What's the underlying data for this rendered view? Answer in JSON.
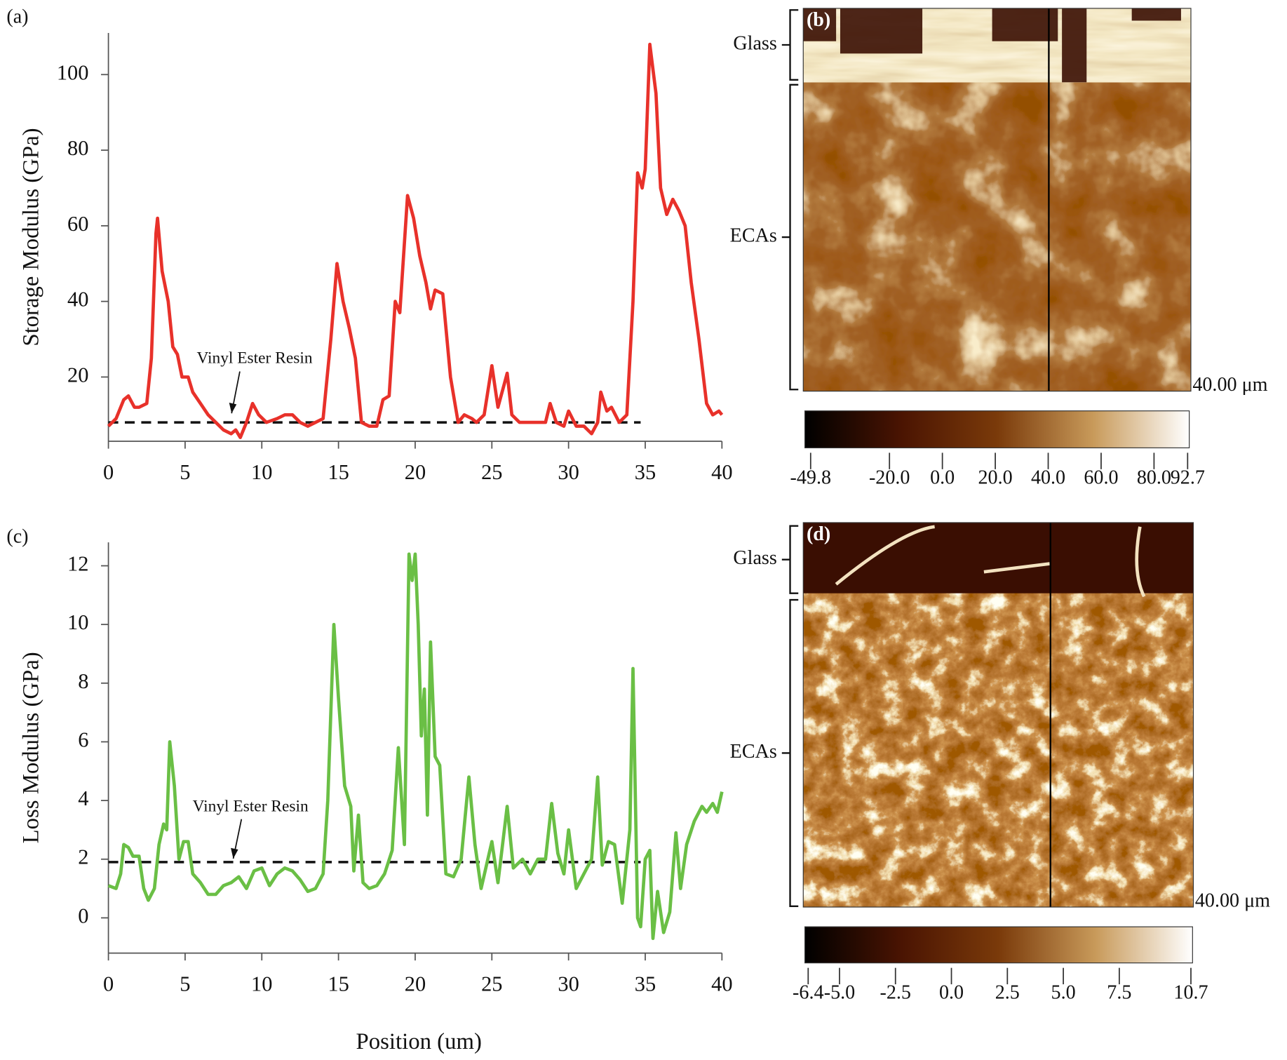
{
  "chart_data": [
    {
      "type": "line",
      "panel": "(a)",
      "ylabel": "Storage Modulus (GPa)",
      "color": "#e8312a",
      "x": [
        0,
        0.5,
        1,
        1.3,
        1.7,
        2,
        2.5,
        2.8,
        3.1,
        3.2,
        3.5,
        3.9,
        4.2,
        4.5,
        4.8,
        5.2,
        5.5,
        6,
        6.5,
        7,
        7.5,
        8,
        8.3,
        8.6,
        9,
        9.4,
        9.8,
        10.3,
        11,
        11.5,
        12,
        12.5,
        13,
        13.5,
        14,
        14.5,
        14.9,
        15.3,
        15.7,
        16.1,
        16.5,
        17,
        17.5,
        17.9,
        18.3,
        18.7,
        19,
        19.5,
        19.9,
        20.3,
        20.7,
        21,
        21.3,
        21.8,
        22.3,
        22.8,
        23.2,
        23.7,
        24,
        24.5,
        25,
        25.4,
        25.8,
        26,
        26.3,
        26.8,
        27.5,
        28,
        28.5,
        28.8,
        29.2,
        29.7,
        30,
        30.5,
        31,
        31.5,
        31.9,
        32.1,
        32.5,
        32.8,
        33.3,
        33.8,
        34.2,
        34.5,
        34.8,
        35,
        35.3,
        35.7,
        36,
        36.4,
        36.8,
        37.2,
        37.6,
        38,
        38.5,
        39,
        39.4,
        39.8,
        40
      ],
      "values": [
        7,
        9,
        14,
        15,
        12,
        12,
        13,
        25,
        58,
        62,
        48,
        40,
        28,
        26,
        20,
        20,
        16,
        13,
        10,
        8,
        6,
        5,
        6,
        4,
        8,
        13,
        10,
        8,
        9,
        10,
        10,
        8,
        7,
        8,
        9,
        30,
        50,
        40,
        33,
        25,
        8,
        7,
        7,
        14,
        15,
        40,
        37,
        68,
        62,
        52,
        45,
        38,
        43,
        42,
        20,
        8,
        10,
        9,
        8,
        10,
        23,
        12,
        18,
        21,
        10,
        8,
        8,
        8,
        8,
        13,
        8,
        7,
        11,
        7,
        7,
        5,
        8,
        16,
        11,
        12,
        8,
        10,
        40,
        74,
        70,
        75,
        108,
        95,
        70,
        63,
        67,
        64,
        60,
        45,
        30,
        13,
        10,
        11,
        10
      ],
      "reference_line": 8,
      "reference_x": [
        0,
        34.7
      ],
      "annotation": "Vinyl Ester Resin",
      "xlim": [
        0,
        40
      ],
      "xticks": [
        0,
        5,
        10,
        15,
        20,
        25,
        30,
        35,
        40
      ],
      "ylim": [
        3,
        111
      ],
      "yticks": [
        20,
        40,
        60,
        80,
        100
      ]
    },
    {
      "type": "image",
      "panel": "(b)",
      "labels": [
        "Glass",
        "ECAs"
      ],
      "scale": "40.00 μm",
      "colormap": [
        "#000000",
        "#4a1402",
        "#7a3a0a",
        "#c89a5a",
        "#ffffff"
      ],
      "clim": [
        -49.8,
        92.7
      ],
      "cticks": [
        -49.8,
        {
          "value": -20,
          "label": "-20.0"
        },
        {
          "value": 0,
          "label": "0.0"
        },
        {
          "value": 20,
          "label": "20.0"
        },
        {
          "value": 40,
          "label": "40.0"
        },
        {
          "value": 60,
          "label": "60.0"
        },
        {
          "value": 80,
          "label": "80.0"
        },
        92.7
      ]
    },
    {
      "type": "line",
      "panel": "(c)",
      "ylabel": "Loss Modulus (GPa)",
      "xlabel": "Position (um)",
      "color": "#6abf45",
      "x": [
        0,
        0.5,
        0.8,
        1,
        1.3,
        1.6,
        2,
        2.3,
        2.6,
        3,
        3.3,
        3.6,
        3.8,
        4,
        4.3,
        4.6,
        4.9,
        5.2,
        5.5,
        6,
        6.5,
        7,
        7.5,
        8,
        8.5,
        9,
        9.5,
        10,
        10.5,
        11,
        11.5,
        12,
        12.5,
        13,
        13.5,
        14,
        14.3,
        14.7,
        15,
        15.4,
        15.8,
        16,
        16.3,
        16.6,
        17,
        17.5,
        18,
        18.5,
        18.9,
        19.3,
        19.6,
        19.8,
        20,
        20.2,
        20.4,
        20.6,
        20.8,
        21,
        21.3,
        21.6,
        22,
        22.5,
        23,
        23.5,
        23.9,
        24.3,
        25,
        25.4,
        26,
        26.4,
        27,
        27.5,
        28,
        28.5,
        28.9,
        29.3,
        29.7,
        30,
        30.5,
        31,
        31.5,
        31.9,
        32.2,
        32.6,
        33,
        33.5,
        34,
        34.2,
        34.5,
        34.7,
        35,
        35.3,
        35.5,
        35.8,
        36.2,
        36.6,
        37,
        37.3,
        37.7,
        38.2,
        38.7,
        39,
        39.4,
        39.7,
        40
      ],
      "values": [
        1.1,
        1.0,
        1.5,
        2.5,
        2.4,
        2.1,
        2.1,
        1.0,
        0.6,
        1.0,
        2.5,
        3.2,
        3.0,
        6.0,
        4.5,
        2.0,
        2.6,
        2.6,
        1.5,
        1.2,
        0.8,
        0.8,
        1.1,
        1.2,
        1.4,
        1.0,
        1.6,
        1.7,
        1.1,
        1.5,
        1.7,
        1.6,
        1.3,
        0.9,
        1.0,
        1.5,
        4.0,
        10,
        7.5,
        4.5,
        3.8,
        1.6,
        3.5,
        1.2,
        1.0,
        1.1,
        1.5,
        2.3,
        5.8,
        2.5,
        12.4,
        11.5,
        12.4,
        10,
        6.2,
        7.8,
        3.5,
        9.4,
        5.5,
        5.2,
        1.5,
        1.4,
        2.0,
        4.8,
        2.5,
        1.0,
        2.6,
        1.2,
        3.8,
        1.7,
        2.0,
        1.5,
        2.0,
        2.0,
        3.9,
        2.2,
        1.5,
        3.0,
        1.0,
        1.5,
        2.0,
        4.8,
        1.8,
        2.6,
        2.5,
        0.5,
        3.0,
        8.5,
        0,
        -0.3,
        2.0,
        2.3,
        -0.7,
        0.9,
        -0.5,
        0.2,
        2.9,
        1.0,
        2.5,
        3.3,
        3.8,
        3.6,
        3.9,
        3.6,
        4.3
      ],
      "reference_line": 1.9,
      "reference_x": [
        0,
        34.7
      ],
      "annotation": "Vinyl Ester Resin",
      "xlim": [
        0,
        40
      ],
      "xticks": [
        0,
        5,
        10,
        15,
        20,
        25,
        30,
        35,
        40
      ],
      "ylim": [
        -1.2,
        12.8
      ],
      "yticks": [
        0,
        2,
        4,
        6,
        8,
        10,
        12
      ]
    },
    {
      "type": "image",
      "panel": "(d)",
      "labels": [
        "Glass",
        "ECAs"
      ],
      "scale": "40.00 μm",
      "colormap": [
        "#000000",
        "#4a1402",
        "#7a3a0a",
        "#c89a5a",
        "#ffffff"
      ],
      "clim": [
        -6.4,
        10.7
      ],
      "cticks": [
        -6.4,
        {
          "value": -5,
          "label": "-5.0"
        },
        -2.5,
        {
          "value": 0,
          "label": "0.0"
        },
        2.5,
        {
          "value": 5,
          "label": "5.0"
        },
        7.5,
        10.7
      ]
    }
  ]
}
